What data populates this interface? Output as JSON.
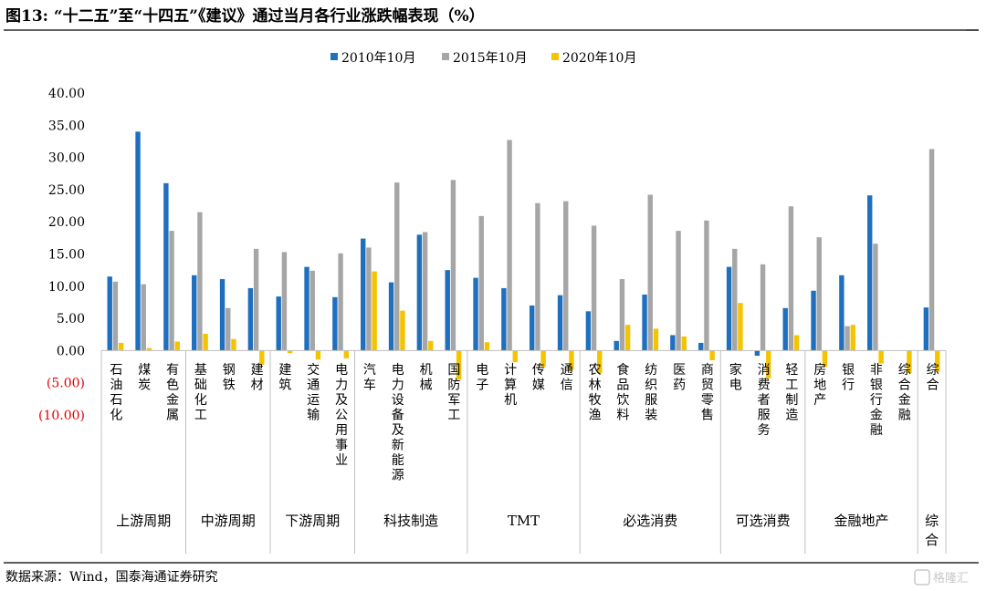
{
  "header": {
    "title": "图13:   “十二五”至“十四五”《建议》通过当月各行业涨跌幅表现（%）"
  },
  "footer": {
    "source": "数据来源：Wind，国泰海通证券研究",
    "watermark": "格隆汇"
  },
  "colors": {
    "series_2010": "#1f6fbf",
    "series_2015": "#a6a6a6",
    "series_2020": "#f5c400",
    "negative_tick": "#e00000"
  },
  "chart_data": {
    "type": "bar",
    "ylim": [
      -10,
      40
    ],
    "yticks": [
      {
        "value": 40,
        "label": "40.00"
      },
      {
        "value": 35,
        "label": "35.00"
      },
      {
        "value": 30,
        "label": "30.00"
      },
      {
        "value": 25,
        "label": "25.00"
      },
      {
        "value": 20,
        "label": "20.00"
      },
      {
        "value": 15,
        "label": "15.00"
      },
      {
        "value": 10,
        "label": "10.00"
      },
      {
        "value": 5,
        "label": "5.00"
      },
      {
        "value": 0,
        "label": "0.00"
      },
      {
        "value": -5,
        "label": "(5.00)"
      },
      {
        "value": -10,
        "label": "(10.00)"
      }
    ],
    "legend": {
      "position": "top"
    },
    "series": [
      {
        "name": "2010年10月",
        "values": [
          11.5,
          34.0,
          26.0,
          11.7,
          11.1,
          9.7,
          8.4,
          13.0,
          8.3,
          17.4,
          10.6,
          18.0,
          12.5,
          11.3,
          9.7,
          7.0,
          8.6,
          6.1,
          1.5,
          8.7,
          2.4,
          1.2,
          13.0,
          -0.8,
          6.6,
          9.3,
          11.7,
          24.1,
          0,
          6.7
        ]
      },
      {
        "name": "2015年10月",
        "values": [
          10.7,
          10.3,
          18.6,
          21.5,
          6.6,
          15.8,
          15.3,
          12.4,
          15.1,
          16.0,
          26.1,
          18.4,
          26.5,
          20.9,
          32.7,
          22.9,
          23.2,
          19.4,
          11.1,
          24.2,
          18.6,
          20.2,
          15.8,
          13.4,
          22.4,
          17.6,
          3.8,
          16.6,
          0,
          31.3
        ]
      },
      {
        "name": "2020年10月",
        "values": [
          1.2,
          0.4,
          1.4,
          2.6,
          1.8,
          -2.2,
          -0.4,
          -1.4,
          -1.2,
          12.3,
          6.2,
          1.5,
          -4.5,
          1.3,
          -1.8,
          -2.5,
          -3.0,
          -3.5,
          4.0,
          3.4,
          2.2,
          -1.5,
          7.4,
          -4.3,
          2.4,
          -2.5,
          4.0,
          -2.0,
          -3.5,
          -3.3
        ]
      }
    ],
    "categories": [
      "石油石化",
      "煤炭",
      "有色金属",
      "基础化工",
      "钢铁",
      "建材",
      "建筑",
      "交通运输",
      "电力及公用事业",
      "汽车",
      "电力设备及新能源",
      "机械",
      "国防军工",
      "电子",
      "计算机",
      "传媒",
      "通信",
      "农林牧渔",
      "食品饮料",
      "纺织服装",
      "医药",
      "商贸零售",
      "家电",
      "消费者服务",
      "轻工制造",
      "房地产",
      "银行",
      "非银行金融",
      "综合金融",
      "综合"
    ],
    "groups": [
      {
        "label": "上游周期",
        "count": 3
      },
      {
        "label": "中游周期",
        "count": 3
      },
      {
        "label": "下游周期",
        "count": 3
      },
      {
        "label": "科技制造",
        "count": 4
      },
      {
        "label": "TMT",
        "count": 4
      },
      {
        "label": "必选消费",
        "count": 5
      },
      {
        "label": "可选消费",
        "count": 3
      },
      {
        "label": "金融地产",
        "count": 4
      },
      {
        "label": "综合",
        "count": 1
      }
    ]
  }
}
